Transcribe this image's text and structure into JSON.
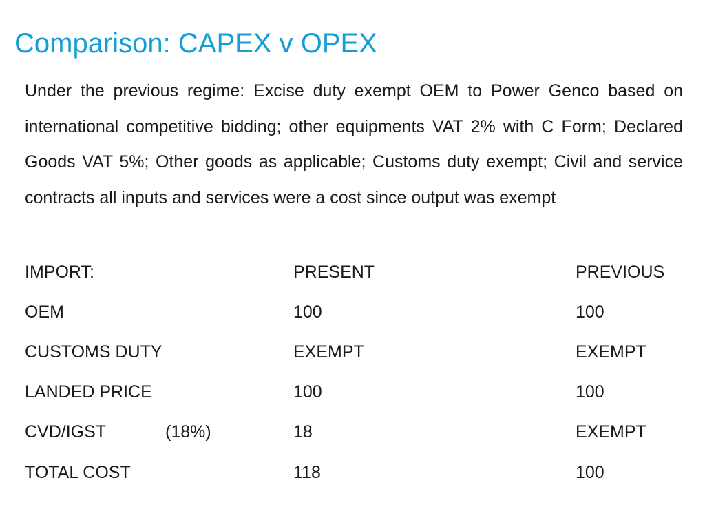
{
  "slide": {
    "title": "Comparison: CAPEX v OPEX",
    "intro": "Under the previous regime: Excise duty exempt OEM to Power Genco based on international competitive bidding; other equipments VAT 2% with C Form; Declared Goods VAT 5%; Other goods as applicable; Customs duty exempt; Civil and service contracts all inputs and services were a cost since output was exempt"
  },
  "table": {
    "header": {
      "item": "IMPORT:",
      "present": "PRESENT",
      "previous": "PREVIOUS"
    },
    "rows": [
      {
        "item": "OEM",
        "rate": "",
        "present": "100",
        "previous": "100"
      },
      {
        "item": "CUSTOMS DUTY",
        "rate": "",
        "present": "EXEMPT",
        "previous": "EXEMPT"
      },
      {
        "item": "LANDED PRICE",
        "rate": "",
        "present": "100",
        "previous": "100"
      },
      {
        "item": "CVD/IGST",
        "rate": "(18%)",
        "present": "18",
        "previous": "EXEMPT"
      },
      {
        "item": "TOTAL COST",
        "rate": "",
        "present": "118",
        "previous": "100"
      }
    ]
  },
  "colors": {
    "title": "#159dd6",
    "text": "#1a1a1a",
    "background": "#ffffff"
  }
}
